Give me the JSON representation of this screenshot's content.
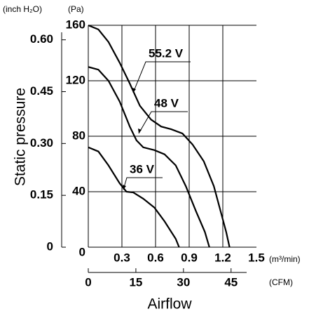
{
  "chart_data": {
    "type": "line",
    "y_label": "Static pressure",
    "y_unit": "(Pa)",
    "y2_unit": "(inch H₂O)",
    "x_label": "Airflow",
    "x_unit": "(m³/min)",
    "x2_unit": "(CFM)",
    "xlim": [
      0,
      1.5
    ],
    "xticks": [
      0.3,
      0.6,
      0.9,
      1.2,
      1.5
    ],
    "ylim": [
      0,
      160
    ],
    "yticks": [
      0,
      40,
      80,
      120,
      160
    ],
    "y2lim": [
      0,
      0.642
    ],
    "y2ticks": [
      0,
      0.15,
      {
        "value": 0.3,
        "label": "0.30"
      },
      {
        "value": 0.45,
        "label": "0.45"
      },
      {
        "value": 0.6,
        "label": "0.60"
      }
    ],
    "x2lim": [
      0,
      53
    ],
    "x2ticks": [
      0,
      15,
      30,
      45
    ],
    "grid": true,
    "series": [
      {
        "name": "55.2 V",
        "color": "#000000",
        "x": [
          0,
          0.09,
          0.18,
          0.28,
          0.37,
          0.46,
          0.56,
          0.65,
          0.74,
          0.84,
          0.93,
          1.03,
          1.12,
          1.18,
          1.23,
          1.26
        ],
        "values": [
          160,
          157,
          148,
          133,
          118,
          102,
          92,
          87,
          85,
          82,
          74,
          62,
          44,
          26,
          11,
          0
        ]
      },
      {
        "name": "48 V",
        "color": "#000000",
        "x": [
          0,
          0.09,
          0.18,
          0.28,
          0.37,
          0.43,
          0.49,
          0.59,
          0.68,
          0.78,
          0.87,
          0.96,
          1.04,
          1.08
        ],
        "values": [
          130,
          128,
          120,
          105,
          87,
          77,
          72,
          70,
          67,
          59,
          44,
          26,
          11,
          0
        ]
      },
      {
        "name": "36 V",
        "color": "#000000",
        "x": [
          0,
          0.09,
          0.18,
          0.28,
          0.34,
          0.4,
          0.49,
          0.59,
          0.68,
          0.78,
          0.81
        ],
        "values": [
          72,
          69,
          59,
          46,
          40,
          39.5,
          35,
          28.5,
          18.7,
          6,
          0
        ]
      }
    ]
  }
}
